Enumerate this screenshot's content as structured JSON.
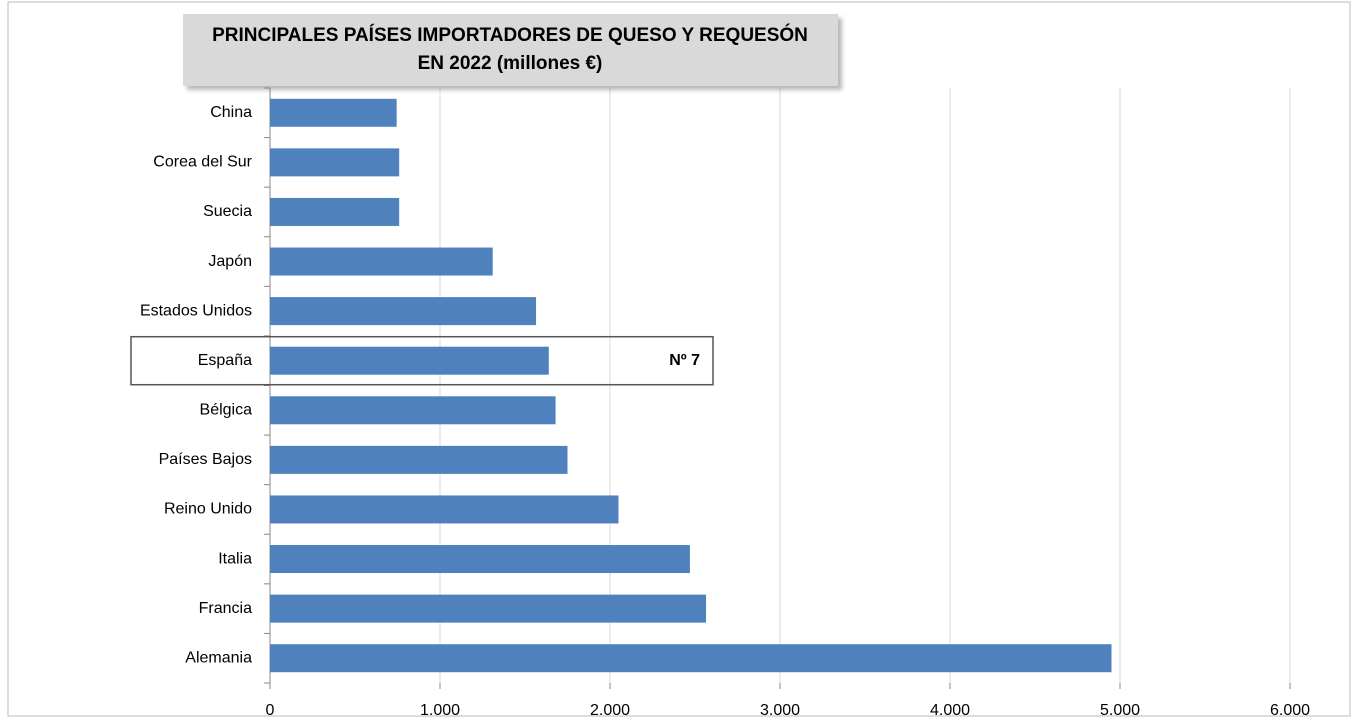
{
  "chart_data": {
    "type": "bar",
    "orientation": "horizontal",
    "title": "PRINCIPALES PAÍSES IMPORTADORES DE QUESO Y REQUESÓN EN 2022 (millones €)",
    "categories": [
      "China",
      "Corea del Sur",
      "Suecia",
      "Japón",
      "Estados Unidos",
      "España",
      "Bélgica",
      "Países Bajos",
      "Reino Unido",
      "Italia",
      "Francia",
      "Alemania"
    ],
    "values": [
      745,
      760,
      760,
      1310,
      1565,
      1640,
      1680,
      1750,
      2050,
      2470,
      2565,
      4950
    ],
    "color": "#4f81bd",
    "xlim": [
      0,
      6000
    ],
    "xticks": [
      0,
      {
        "value": 1000,
        "label": "1.000"
      },
      {
        "value": 2000,
        "label": "2.000"
      },
      {
        "value": 3000,
        "label": "3.000"
      },
      {
        "value": 4000,
        "label": "4.000"
      },
      {
        "value": 5000,
        "label": "5.000"
      },
      {
        "value": 6000,
        "label": "6.000"
      }
    ],
    "grid": true,
    "annotation": {
      "text": "Nº 7",
      "category": "España"
    }
  }
}
